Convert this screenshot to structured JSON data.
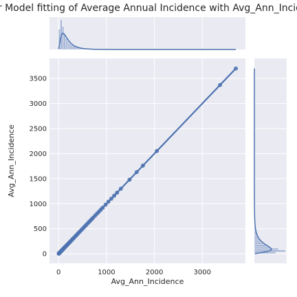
{
  "chart_data": {
    "type": "scatter",
    "title": "Linear Model fitting of Average Annual Incidence with Avg_Ann_Incidence",
    "xlabel": "Avg_Ann_Incidence",
    "ylabel": "Avg_Ann_Incidence",
    "xlim": [
      -190,
      3900
    ],
    "ylim": [
      -190,
      3900
    ],
    "xticks": [
      0,
      1000,
      2000,
      3000
    ],
    "yticks": [
      0,
      500,
      1000,
      1500,
      2000,
      2500,
      3000,
      3500
    ],
    "grid": true,
    "colors": {
      "point": "#4c72b0",
      "background": "#eaeaf2",
      "grid": "#ffffff"
    },
    "regression_line": {
      "x": [
        0,
        3700
      ],
      "y": [
        0,
        3700
      ]
    },
    "points": [
      [
        3,
        3
      ],
      [
        6,
        6
      ],
      [
        9,
        9
      ],
      [
        12,
        12
      ],
      [
        15,
        15
      ],
      [
        18,
        18
      ],
      [
        22,
        22
      ],
      [
        26,
        26
      ],
      [
        30,
        30
      ],
      [
        35,
        35
      ],
      [
        40,
        40
      ],
      [
        45,
        45
      ],
      [
        50,
        50
      ],
      [
        56,
        56
      ],
      [
        62,
        62
      ],
      [
        68,
        68
      ],
      [
        75,
        75
      ],
      [
        82,
        82
      ],
      [
        90,
        90
      ],
      [
        98,
        98
      ],
      [
        106,
        106
      ],
      [
        115,
        115
      ],
      [
        125,
        125
      ],
      [
        135,
        135
      ],
      [
        145,
        145
      ],
      [
        156,
        156
      ],
      [
        168,
        168
      ],
      [
        180,
        180
      ],
      [
        195,
        195
      ],
      [
        210,
        210
      ],
      [
        225,
        225
      ],
      [
        240,
        240
      ],
      [
        260,
        260
      ],
      [
        280,
        280
      ],
      [
        300,
        300
      ],
      [
        320,
        320
      ],
      [
        345,
        345
      ],
      [
        370,
        370
      ],
      [
        395,
        395
      ],
      [
        420,
        420
      ],
      [
        450,
        450
      ],
      [
        480,
        480
      ],
      [
        510,
        510
      ],
      [
        540,
        540
      ],
      [
        570,
        570
      ],
      [
        600,
        600
      ],
      [
        630,
        630
      ],
      [
        660,
        660
      ],
      [
        690,
        690
      ],
      [
        720,
        720
      ],
      [
        760,
        760
      ],
      [
        800,
        800
      ],
      [
        840,
        840
      ],
      [
        880,
        880
      ],
      [
        920,
        920
      ],
      [
        980,
        980
      ],
      [
        1040,
        1040
      ],
      [
        1100,
        1100
      ],
      [
        1160,
        1160
      ],
      [
        1220,
        1220
      ],
      [
        1300,
        1300
      ],
      [
        1480,
        1480
      ],
      [
        1630,
        1630
      ],
      [
        1760,
        1760
      ],
      [
        2050,
        2050
      ],
      [
        3370,
        3370
      ],
      [
        3700,
        3700
      ]
    ],
    "marginal_x": {
      "bins": [
        0,
        37,
        74,
        111,
        148,
        185,
        222,
        259,
        296,
        333,
        370,
        407,
        444,
        481,
        518,
        555
      ],
      "counts": [
        40,
        58,
        45,
        30,
        22,
        16,
        12,
        9,
        7,
        6,
        5,
        4,
        3,
        2,
        2
      ],
      "kde_peak": 110
    },
    "marginal_y": {
      "bins": [
        0,
        37,
        74,
        111,
        148,
        185,
        222,
        259,
        296,
        333,
        370,
        407,
        444,
        481,
        518,
        555
      ],
      "counts": [
        40,
        58,
        45,
        30,
        22,
        16,
        12,
        9,
        7,
        6,
        5,
        4,
        3,
        2,
        2
      ],
      "kde_peak": 110
    }
  }
}
